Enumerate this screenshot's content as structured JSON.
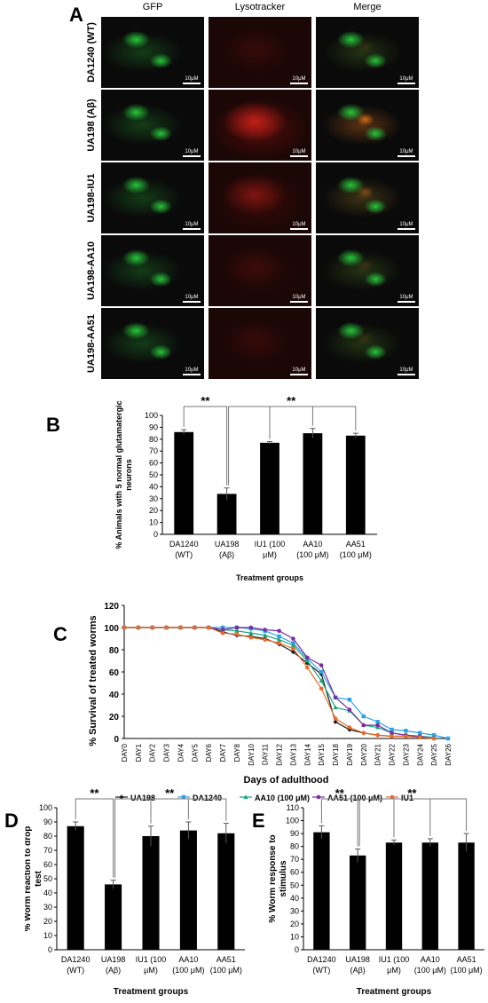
{
  "panel_a": {
    "letter": "A",
    "columns": [
      "GFP",
      "Lysotracker",
      "Merge"
    ],
    "rows": [
      "DA1240 (WT)",
      "UA198 (Aβ)",
      "UA198-IU1",
      "UA198-AA10",
      "UA198-AA51"
    ],
    "scale_label": "10μM",
    "colors": {
      "gfp": "#27c43a",
      "lyso": "#d8231c",
      "background": "#0a0a0a"
    },
    "lyso_intensity": [
      0.12,
      0.85,
      0.45,
      0.15,
      0.12
    ]
  },
  "chart_data": [
    {
      "panel": "B",
      "type": "bar",
      "categories": [
        "DA1240 (WT)",
        "UA198 (Aβ)",
        "IU1 (100 μM)",
        "AA10 (100 μM)",
        "AA51 (100 μM)"
      ],
      "tick_lines": [
        [
          "DA1240",
          "(WT)"
        ],
        [
          "UA198",
          "(Aβ)"
        ],
        [
          "IU1 (100",
          "μM)"
        ],
        [
          "AA10",
          "(100 μM)"
        ],
        [
          "AA51",
          "(100 μM)"
        ]
      ],
      "values": [
        86,
        34,
        77,
        85,
        83
      ],
      "errors": [
        2,
        5,
        1,
        4,
        2
      ],
      "ylim": [
        0,
        100
      ],
      "yticks": [
        0,
        10,
        20,
        30,
        40,
        50,
        60,
        70,
        80,
        90,
        100
      ],
      "ylabel_lines": [
        "% Animals with 5 normal glutamatergic",
        "neurons"
      ],
      "xlabel": "Treatment groups",
      "significance": "**",
      "bar_color": "#000000"
    },
    {
      "panel": "C",
      "type": "line",
      "x": [
        "DAY0",
        "DAY1",
        "DAY2",
        "DAY3",
        "DAY4",
        "DAY5",
        "DAY6",
        "DAY7",
        "DAY8",
        "DAY10",
        "DAY11",
        "DAY12",
        "DAY13",
        "DAY14",
        "DAY15",
        "DAY18",
        "DAY19",
        "DAY20",
        "DAY21",
        "DAY22",
        "DAY23",
        "DAY24",
        "DAY25",
        "DAY26"
      ],
      "ylim": [
        0,
        120
      ],
      "yticks": [
        0,
        20,
        40,
        60,
        80,
        100,
        120
      ],
      "ylabel": "% Survival of treated worms",
      "xlabel": "Days of adulthood",
      "series": [
        {
          "name": "UA198",
          "color": "#1a1a1a",
          "marker": "diamond",
          "values": [
            100,
            100,
            100,
            100,
            100,
            100,
            100,
            96,
            93,
            92,
            90,
            85,
            78,
            68,
            58,
            15,
            8,
            5,
            3,
            2,
            2,
            1,
            0,
            null
          ]
        },
        {
          "name": "DA1240",
          "color": "#29a3e3",
          "marker": "square",
          "values": [
            100,
            100,
            100,
            100,
            100,
            100,
            100,
            100,
            100,
            99,
            97,
            92,
            86,
            72,
            60,
            37,
            35,
            20,
            15,
            8,
            7,
            5,
            3,
            0
          ]
        },
        {
          "name": "AA10 (100 μM)",
          "color": "#18a67e",
          "marker": "triangle",
          "values": [
            100,
            100,
            100,
            100,
            100,
            100,
            100,
            98,
            97,
            95,
            93,
            89,
            84,
            70,
            52,
            28,
            25,
            12,
            10,
            5,
            3,
            2,
            1,
            null
          ]
        },
        {
          "name": "AA51 (100 μM)",
          "color": "#7a2fa0",
          "marker": "circle",
          "values": [
            100,
            100,
            100,
            100,
            100,
            100,
            100,
            98,
            100,
            100,
            98,
            97,
            90,
            73,
            66,
            37,
            26,
            12,
            12,
            5,
            3,
            2,
            0,
            null
          ]
        },
        {
          "name": "IU1",
          "color": "#e96a2a",
          "marker": "circle",
          "values": [
            100,
            100,
            100,
            100,
            100,
            100,
            100,
            95,
            94,
            91,
            89,
            86,
            81,
            64,
            45,
            18,
            10,
            5,
            3,
            2,
            2,
            1,
            0,
            null
          ]
        }
      ]
    },
    {
      "panel": "D",
      "type": "bar",
      "categories": [
        "DA1240 (WT)",
        "UA198 (Aβ)",
        "IU1 (100 μM)",
        "AA10 (100 μM)",
        "AA51 (100 μM)"
      ],
      "tick_lines": [
        [
          "DA1240",
          "(WT)"
        ],
        [
          "UA198",
          "(Aβ)"
        ],
        [
          "IU1 (100",
          "μM)"
        ],
        [
          "AA10",
          "(100 μM)"
        ],
        [
          "AA51",
          "(100 μM)"
        ]
      ],
      "values": [
        87,
        46,
        80,
        84,
        82
      ],
      "errors": [
        3,
        3,
        7,
        6,
        7
      ],
      "ylim": [
        0,
        100
      ],
      "yticks": [
        0,
        10,
        20,
        30,
        40,
        50,
        60,
        70,
        80,
        90,
        100
      ],
      "ylabel_lines": [
        "% Worm reaction to drop",
        "test"
      ],
      "xlabel": "Treatment groups",
      "significance": "**",
      "bar_color": "#000000"
    },
    {
      "panel": "E",
      "type": "bar",
      "categories": [
        "DA1240 (WT)",
        "UA198 (Aβ)",
        "IU1 (100 μM)",
        "AA10 (100 μM)",
        "AA51 (100 μM)"
      ],
      "tick_lines": [
        [
          "DA1240",
          "(WT)"
        ],
        [
          "UA198",
          "(Aβ)"
        ],
        [
          "IU1 (100",
          "μM)"
        ],
        [
          "AA10",
          "(100 μM)"
        ],
        [
          "AA51",
          "(100 μM)"
        ]
      ],
      "values": [
        91,
        73,
        83,
        83,
        83
      ],
      "errors": [
        5,
        5,
        2,
        3,
        7
      ],
      "ylim": [
        0,
        110
      ],
      "yticks": [
        0,
        10,
        20,
        30,
        40,
        50,
        60,
        70,
        80,
        90,
        100,
        110
      ],
      "ylabel_lines": [
        "% Worm response to",
        "stimulus"
      ],
      "xlabel": "Treatment groups",
      "significance": "**",
      "bar_color": "#000000"
    }
  ]
}
